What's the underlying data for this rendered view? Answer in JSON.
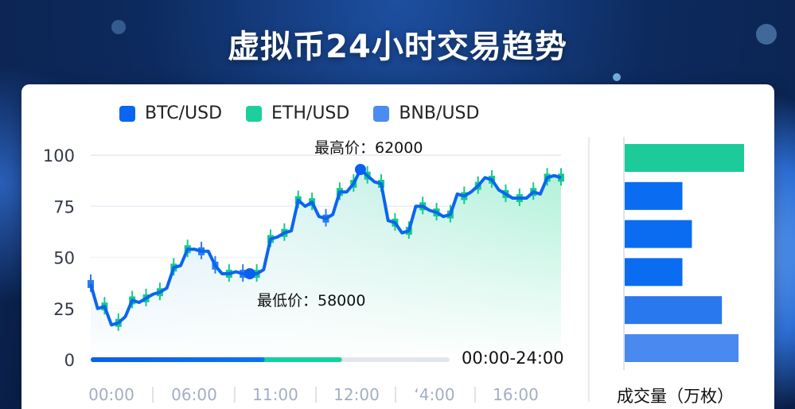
{
  "title": "虚拟币24小时交易趋势",
  "legend": [
    {
      "label": "BTC/USD",
      "color": "#0a66f0"
    },
    {
      "label": "ETH/USD",
      "color": "#1ccf9c"
    },
    {
      "label": "BNB/USD",
      "color": "#4a8cf0"
    }
  ],
  "chart_data": [
    {
      "type": "line",
      "y_ticks": [
        "100",
        "75",
        "50",
        "25",
        "0"
      ],
      "ylim": [
        0,
        100
      ],
      "x_ticks": [
        "00:00",
        "06:00",
        "11:00",
        "12:00",
        "ʻ4:00",
        "16:00"
      ],
      "grid": true,
      "values": [
        37,
        25,
        26,
        17,
        18,
        21,
        29,
        28,
        30,
        32,
        33,
        35,
        45,
        46,
        54,
        54,
        53,
        53,
        46,
        42,
        42,
        43,
        42,
        42,
        42,
        44,
        59,
        60,
        62,
        63,
        78,
        75,
        77,
        70,
        69,
        71,
        82,
        82,
        86,
        93,
        90,
        87,
        86,
        68,
        67,
        62,
        63,
        75,
        75,
        73,
        72,
        70,
        71,
        81,
        80,
        82,
        85,
        89,
        88,
        83,
        81,
        79,
        79,
        79,
        82,
        81,
        89,
        90,
        89
      ],
      "annotations": {
        "high": {
          "label": "最高价：62000",
          "index": 39
        },
        "low": {
          "label": "最低价：58000",
          "index": 23
        }
      },
      "line_color": "#0a66f0",
      "range_label": "00:00-24:00",
      "progress": {
        "blue_end_pct": 48.5,
        "green_end_pct": 70
      }
    },
    {
      "type": "bar",
      "orientation": "horizontal",
      "xlabel": "成交量（万枚）",
      "values": [
        151,
        73,
        85,
        73,
        123,
        144
      ],
      "colors": [
        "#1dcb9a",
        "#0a6cf0",
        "#0a6cf0",
        "#0a6cf0",
        "#2a78ee",
        "#4a8af0"
      ]
    }
  ]
}
